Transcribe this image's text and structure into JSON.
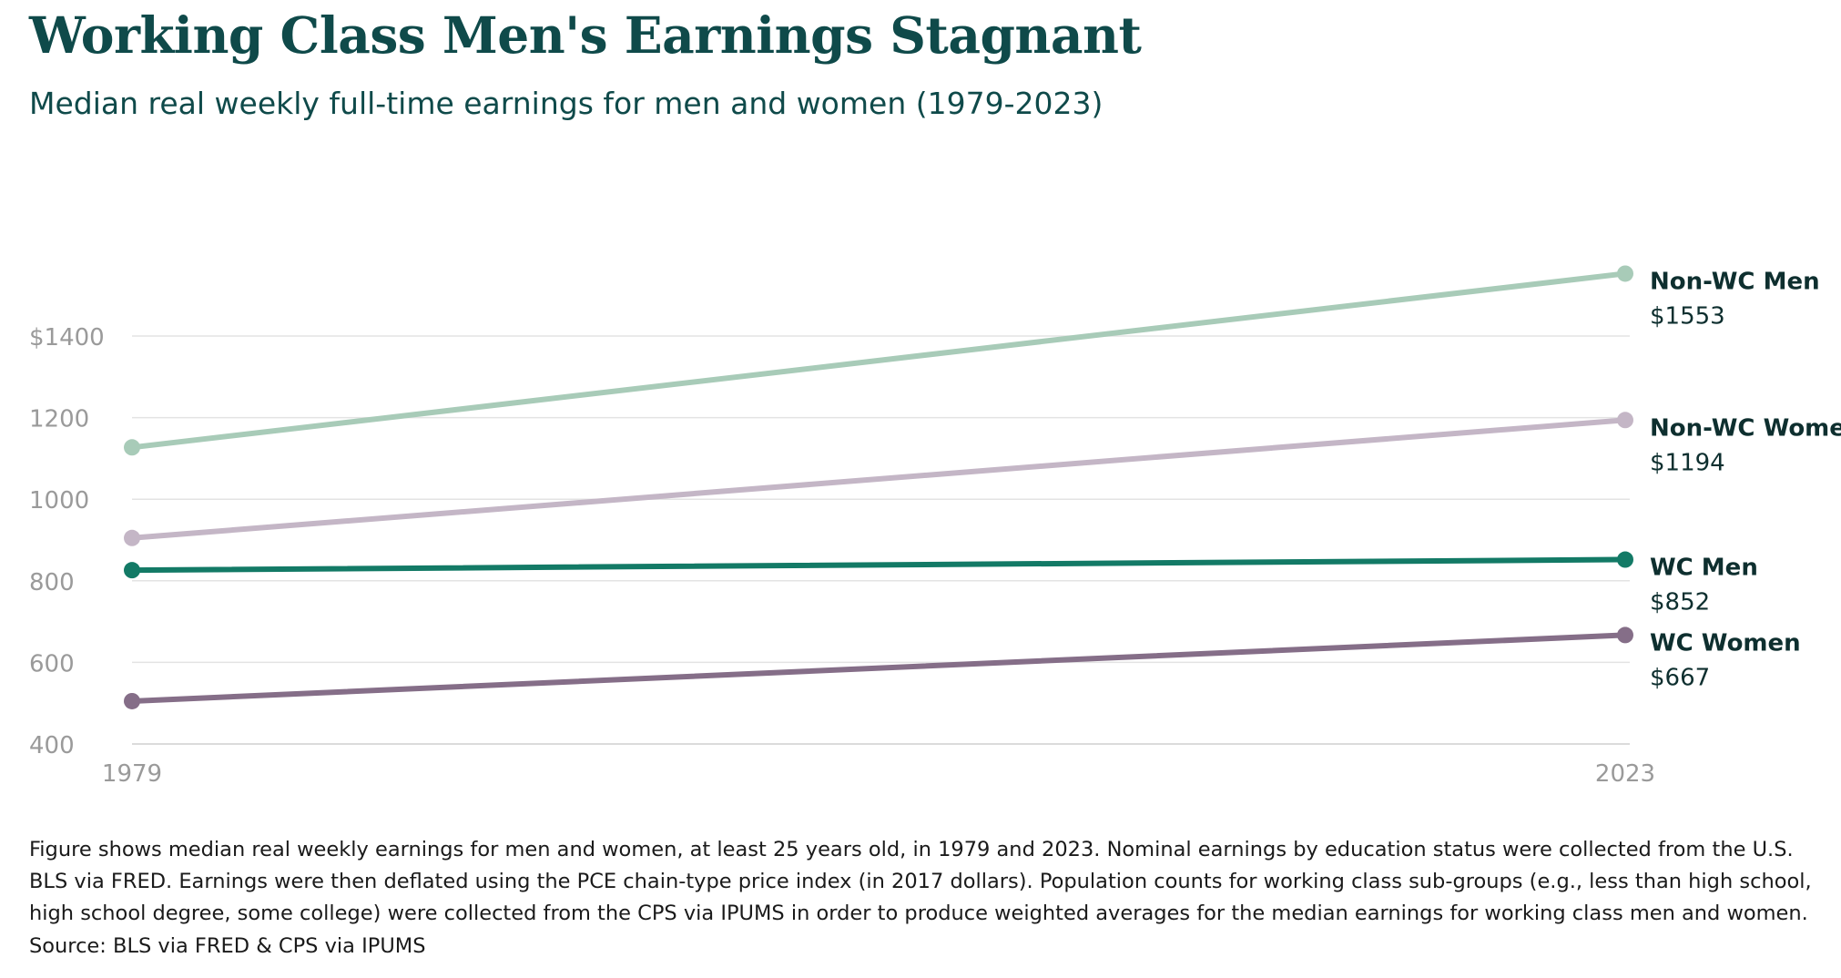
{
  "header": {
    "title": "Working Class Men's Earnings Stagnant",
    "subtitle": "Median real weekly full-time earnings for men and women (1979-2023)"
  },
  "chart_data": {
    "type": "line",
    "title": "Working Class Men's Earnings Stagnant",
    "subtitle": "Median real weekly full-time earnings for men and women (1979-2023)",
    "x": [
      1979,
      2023
    ],
    "x_tick_labels": [
      "1979",
      "2023"
    ],
    "xlabel": "",
    "ylabel": "",
    "ylim": [
      400,
      1600
    ],
    "y_ticks": [
      400,
      600,
      800,
      1000,
      1200,
      1400
    ],
    "y_tick_labels": [
      "400",
      "600",
      "800",
      "1000",
      "1200",
      "$1400"
    ],
    "grid": true,
    "legend": "direct labels at right end of lines",
    "series": [
      {
        "name": "Non-WC Men",
        "values": [
          1127,
          1553
        ],
        "end_label": "$1553",
        "color": "#a8cbb8"
      },
      {
        "name": "Non-WC Women",
        "values": [
          905,
          1194
        ],
        "end_label": "$1194",
        "color": "#c4b6c6"
      },
      {
        "name": "WC Men",
        "values": [
          826,
          852
        ],
        "end_label": "$852",
        "color": "#137a66"
      },
      {
        "name": "WC Women",
        "values": [
          505,
          667
        ],
        "end_label": "$667",
        "color": "#856e88"
      }
    ]
  },
  "footer": {
    "note": "Figure shows median real weekly earnings for men and women, at least 25 years old, in 1979 and 2023. Nominal earnings by education status were collected from the U.S. BLS via FRED. Earnings were then deflated using the PCE chain-type price index (in 2017 dollars). Population counts for working class sub-groups (e.g., less than high school, high school degree, some college) were collected from the CPS via IPUMS in order to produce weighted averages for the median earnings for working class men and women.",
    "source": "Source: BLS via FRED & CPS via IPUMS"
  }
}
